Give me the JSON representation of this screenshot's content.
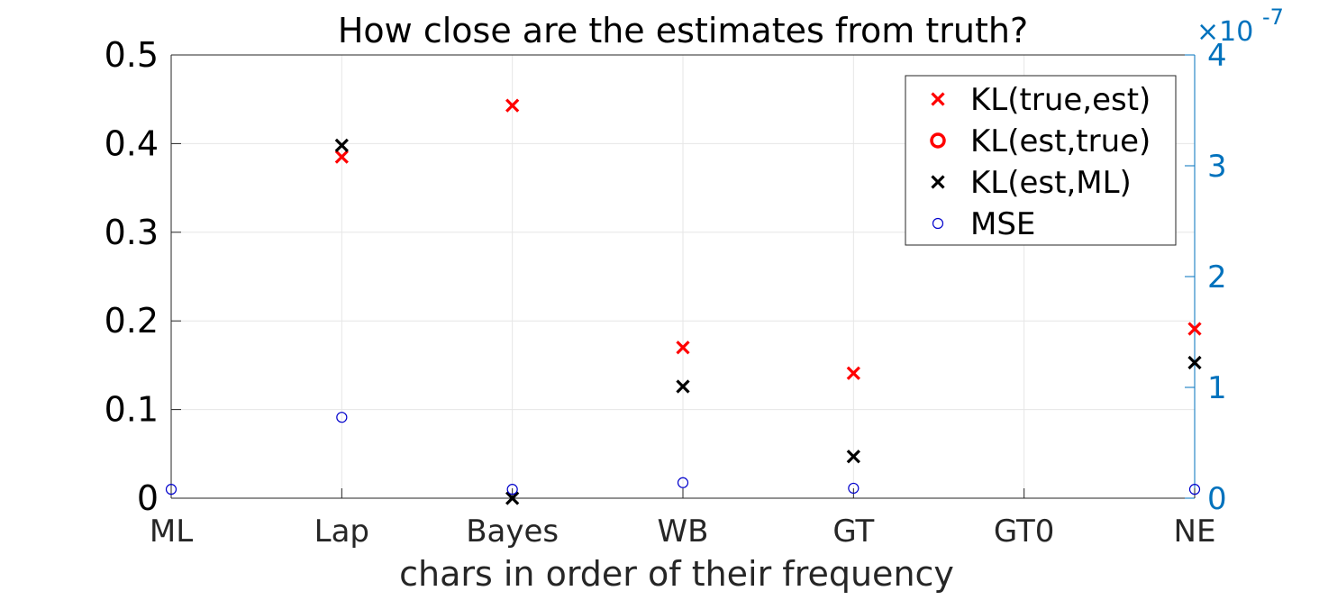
{
  "chart_data": {
    "type": "scatter",
    "title": "How close are the estimates from truth?",
    "xlabel": "chars in order of their frequency",
    "ylabel": "",
    "categories": [
      "ML",
      "Lap",
      "Bayes",
      "WB",
      "GT",
      "GT0",
      "NE"
    ],
    "y_left": {
      "lim": [
        0,
        0.5
      ],
      "ticks": [
        0,
        0.1,
        0.2,
        0.3,
        0.4,
        0.5
      ],
      "tick_labels": [
        "0",
        "0.1",
        "0.2",
        "0.3",
        "0.4",
        "0.5"
      ]
    },
    "y_right": {
      "lim": [
        0,
        4
      ],
      "ticks": [
        0,
        1,
        2,
        3,
        4
      ],
      "tick_labels": [
        "0",
        "1",
        "2",
        "3",
        "4"
      ],
      "exponent_label": "×10",
      "exponent_power": "-7",
      "color": "#0072BD"
    },
    "grid": true,
    "legend_position": "top-right",
    "series": [
      {
        "name": "KL(true,est)",
        "marker": "x",
        "color": "#ff0000",
        "axis": "left",
        "values": [
          null,
          0.385,
          0.443,
          0.17,
          0.141,
          null,
          0.191
        ]
      },
      {
        "name": "KL(est,true)",
        "marker": "o-bold",
        "color": "#ff0000",
        "axis": "left",
        "values": [
          null,
          null,
          null,
          null,
          null,
          null,
          null
        ]
      },
      {
        "name": "KL(est,ML)",
        "marker": "x",
        "color": "#000000",
        "axis": "left",
        "values": [
          null,
          0.398,
          0.0,
          0.126,
          0.047,
          null,
          0.153
        ]
      },
      {
        "name": "MSE",
        "marker": "o",
        "color": "#0000cc",
        "axis": "right",
        "values": [
          0.08,
          0.73,
          0.08,
          0.14,
          0.09,
          null,
          0.08
        ]
      }
    ]
  }
}
